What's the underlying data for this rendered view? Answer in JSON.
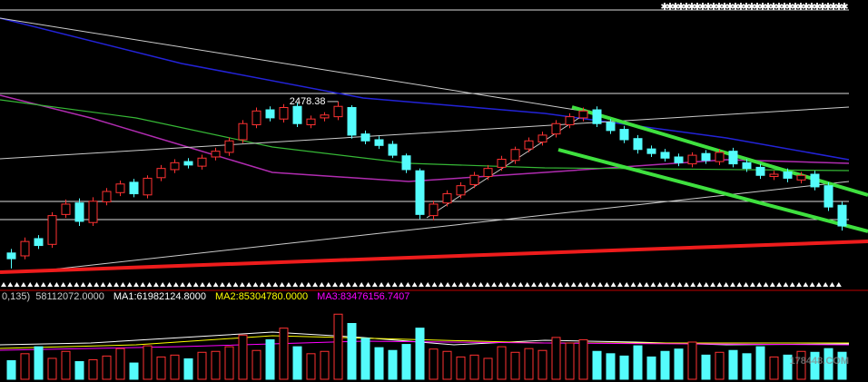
{
  "chart_data": [
    {
      "type": "candlestick",
      "open": [
        2215,
        2210,
        2240,
        2230,
        2282,
        2302,
        2268,
        2304,
        2320,
        2338,
        2316,
        2346,
        2360,
        2374,
        2366,
        2382,
        2390,
        2412,
        2438,
        2464,
        2448,
        2470,
        2438,
        2450,
        2452,
        2468,
        2422,
        2412,
        2404,
        2384,
        2358,
        2280,
        2302,
        2316,
        2334,
        2348,
        2364,
        2376,
        2396,
        2408,
        2422,
        2438,
        2450,
        2464,
        2442,
        2430,
        2414,
        2396,
        2390,
        2382,
        2370,
        2388,
        2374,
        2392,
        2372,
        2364,
        2348,
        2356,
        2342,
        2352,
        2332,
        2298
      ],
      "high": [
        2222,
        2242,
        2246,
        2286,
        2308,
        2310,
        2312,
        2328,
        2341,
        2344,
        2350,
        2368,
        2378,
        2380,
        2386,
        2398,
        2416,
        2446,
        2468,
        2470,
        2474,
        2476,
        2454,
        2460,
        2478.38,
        2472,
        2428,
        2418,
        2410,
        2388,
        2362,
        2306,
        2324,
        2338,
        2356,
        2368,
        2384,
        2400,
        2416,
        2426,
        2446,
        2458,
        2468,
        2470,
        2448,
        2436,
        2420,
        2402,
        2396,
        2388,
        2390,
        2394,
        2396,
        2398,
        2378,
        2370,
        2358,
        2362,
        2356,
        2358,
        2338,
        2304
      ],
      "low": [
        2188,
        2204,
        2222,
        2224,
        2276,
        2262,
        2262,
        2298,
        2314,
        2312,
        2310,
        2340,
        2354,
        2362,
        2360,
        2376,
        2384,
        2406,
        2432,
        2444,
        2442,
        2434,
        2432,
        2444,
        2446,
        2414,
        2404,
        2396,
        2380,
        2354,
        2274,
        2272,
        2296,
        2310,
        2328,
        2342,
        2358,
        2370,
        2390,
        2402,
        2416,
        2432,
        2444,
        2434,
        2422,
        2406,
        2388,
        2382,
        2374,
        2366,
        2364,
        2370,
        2368,
        2364,
        2356,
        2344,
        2342,
        2338,
        2336,
        2324,
        2288,
        2254
      ],
      "close": [
        2205,
        2235,
        2228,
        2280,
        2300,
        2270,
        2305,
        2322,
        2335,
        2318,
        2345,
        2362,
        2372,
        2368,
        2380,
        2392,
        2410,
        2440,
        2462,
        2450,
        2468,
        2440,
        2448,
        2455,
        2470,
        2420,
        2410,
        2402,
        2385,
        2360,
        2282,
        2300,
        2318,
        2332,
        2350,
        2362,
        2378,
        2395,
        2410,
        2420,
        2440,
        2452,
        2462,
        2440,
        2428,
        2412,
        2395,
        2388,
        2380,
        2372,
        2385,
        2376,
        2390,
        2370,
        2362,
        2350,
        2352,
        2345,
        2350,
        2330,
        2295,
        2262
      ],
      "ylim": [
        2150,
        2655
      ],
      "up_color": "#ff3232",
      "down_color": "#54fcfc",
      "annotation": {
        "text": "2478.38",
        "value": 2478.38
      }
    },
    {
      "type": "bar",
      "values": [
        40000000,
        55000000,
        70000000,
        45000000,
        60000000,
        38000000,
        42000000,
        50000000,
        66000000,
        35000000,
        72000000,
        48000000,
        52000000,
        44000000,
        58000000,
        60000000,
        70000000,
        95000000,
        62000000,
        85000000,
        110000000,
        70000000,
        55000000,
        60000000,
        140000000,
        120000000,
        88000000,
        68000000,
        62000000,
        75000000,
        110000000,
        65000000,
        60000000,
        48000000,
        52000000,
        45000000,
        70000000,
        58000000,
        66000000,
        62000000,
        90000000,
        78000000,
        85000000,
        60000000,
        55000000,
        50000000,
        72000000,
        48000000,
        60000000,
        65000000,
        80000000,
        52000000,
        58000000,
        62000000,
        55000000,
        70000000,
        48000000,
        52000000,
        60000000,
        58000000,
        66000000,
        58112072
      ],
      "ylim": [
        0,
        160000000
      ],
      "header": "0,135)",
      "current_label": "58112072.0000",
      "ma_labels": [
        {
          "text": "MA1:61982124.8000",
          "color": "#ffffff"
        },
        {
          "text": "MA2:85304780.0000",
          "color": "#ffff00"
        },
        {
          "text": "MA3:83476156.7407",
          "color": "#ff00ff"
        }
      ],
      "watermark": "178448.COM"
    }
  ]
}
